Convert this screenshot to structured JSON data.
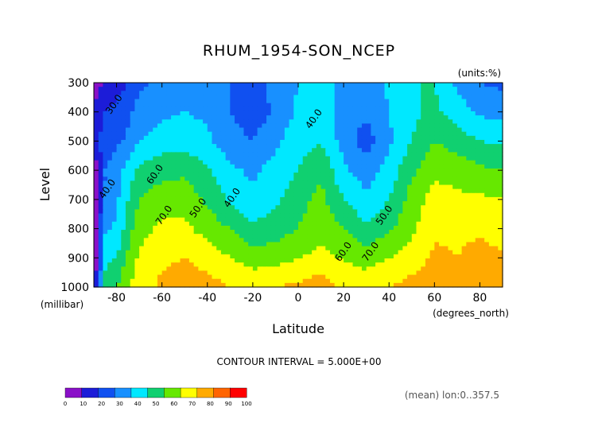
{
  "chart_data": {
    "type": "heatmap",
    "title": "RHUM_1954-SON_NCEP",
    "units_label": "(units:%)",
    "xlabel": "Latitude",
    "xunit_label": "(degrees_north)",
    "ylabel": "Level",
    "yunit_label": "(millibar)",
    "contour_interval_text": "CONTOUR INTERVAL = 5.000E+00",
    "footer_text": "(mean) lon:0..357.5",
    "xlim": [
      -90,
      90
    ],
    "ylim": [
      1000,
      300
    ],
    "x_ticks": [
      -80,
      -60,
      -40,
      -20,
      0,
      20,
      40,
      60,
      80
    ],
    "x_tick_labels": [
      "-80",
      "-60",
      "-40",
      "-20",
      "0",
      "20",
      "40",
      "60",
      "80"
    ],
    "y_ticks": [
      300,
      400,
      500,
      600,
      700,
      800,
      900,
      1000
    ],
    "y_tick_labels": [
      "300",
      "400",
      "500",
      "600",
      "700",
      "800",
      "900",
      "1000"
    ],
    "contour_labels": [
      {
        "text": "30.0",
        "lat": -80,
        "lev": 380
      },
      {
        "text": "40.0",
        "lat": -83,
        "lev": 670
      },
      {
        "text": "60.0",
        "lat": -62,
        "lev": 620
      },
      {
        "text": "70.0",
        "lat": -58,
        "lev": 760
      },
      {
        "text": "50.0",
        "lat": -43,
        "lev": 735
      },
      {
        "text": "40.0",
        "lat": -28,
        "lev": 700
      },
      {
        "text": "40.0",
        "lat": 8,
        "lev": 430
      },
      {
        "text": "50.0",
        "lat": 39,
        "lev": 760
      },
      {
        "text": "60.0",
        "lat": 21,
        "lev": 885
      },
      {
        "text": "70.0",
        "lat": 33,
        "lev": 885
      }
    ],
    "colorbar": {
      "levels": [
        0,
        10,
        20,
        30,
        40,
        50,
        60,
        70,
        80,
        90,
        100
      ],
      "tick_labels": [
        "0",
        "10",
        "20",
        "30",
        "40",
        "50",
        "60",
        "70",
        "80",
        "90",
        "100"
      ],
      "colors": [
        "#8a10c8",
        "#1c1cd8",
        "#1050f0",
        "#1890ff",
        "#00e8ff",
        "#10d070",
        "#66e800",
        "#ffff00",
        "#ffaa00",
        "#ff6400",
        "#ff0000"
      ]
    },
    "grid": false,
    "legend_position": "bottom-left",
    "field": {
      "lats": [
        -90,
        -85,
        -80,
        -75,
        -70,
        -60,
        -50,
        -40,
        -30,
        -20,
        -10,
        0,
        10,
        20,
        30,
        40,
        50,
        60,
        70,
        80,
        90
      ],
      "levels": [
        300,
        400,
        500,
        600,
        700,
        800,
        900,
        1000
      ],
      "values": [
        [
          5,
          12,
          15,
          20,
          28,
          33,
          35,
          36,
          30,
          28,
          32,
          40,
          48,
          33,
          35,
          42,
          50,
          50,
          38,
          30,
          28
        ],
        [
          12,
          20,
          24,
          28,
          34,
          38,
          40,
          38,
          30,
          24,
          32,
          42,
          46,
          34,
          32,
          40,
          48,
          52,
          45,
          38,
          36
        ],
        [
          18,
          24,
          28,
          32,
          40,
          45,
          46,
          42,
          34,
          30,
          38,
          46,
          50,
          36,
          25,
          38,
          50,
          60,
          55,
          50,
          48
        ],
        [
          0,
          30,
          36,
          44,
          52,
          56,
          58,
          52,
          42,
          38,
          44,
          50,
          58,
          42,
          35,
          44,
          58,
          68,
          66,
          62,
          60
        ],
        [
          0,
          30,
          38,
          50,
          60,
          66,
          66,
          58,
          48,
          42,
          48,
          56,
          63,
          50,
          42,
          50,
          64,
          74,
          72,
          72,
          70
        ],
        [
          0,
          38,
          42,
          55,
          66,
          72,
          72,
          66,
          60,
          52,
          55,
          60,
          68,
          60,
          52,
          58,
          68,
          78,
          78,
          78,
          74
        ],
        [
          0,
          48,
          50,
          62,
          72,
          78,
          80,
          76,
          70,
          65,
          66,
          70,
          72,
          69,
          66,
          70,
          74,
          82,
          80,
          84,
          82
        ],
        [
          0,
          52,
          60,
          68,
          76,
          82,
          86,
          84,
          80,
          78,
          80,
          82,
          86,
          78,
          76,
          80,
          84,
          86,
          88,
          90,
          90
        ]
      ]
    }
  }
}
